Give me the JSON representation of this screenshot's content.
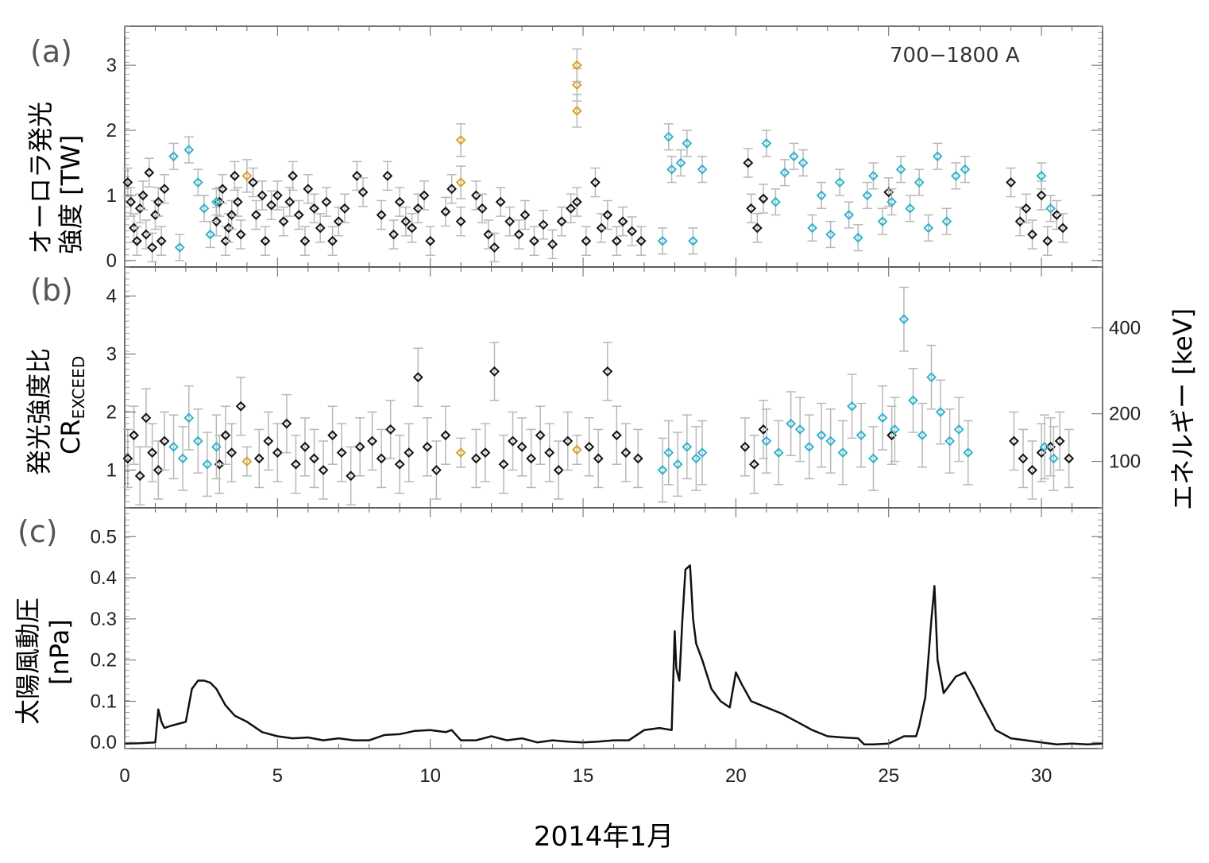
{
  "figure": {
    "xlabel": "2014年1月",
    "xticks": [
      "0",
      "5",
      "10",
      "15",
      "20",
      "25",
      "30"
    ]
  },
  "colors": {
    "black_marker": "#111111",
    "cyan_marker": "#2fb5cf",
    "orange_marker": "#e0a020",
    "errorbar": "#b8b8b8",
    "line": "#111111"
  },
  "chart_data": [
    {
      "panel": "a",
      "panel_label": "(a)",
      "type": "scatter",
      "ylabel_line1": "オーロラ発光",
      "ylabel_line2": "強度 [TW]",
      "annotation": "700−1800 A",
      "yticks": [
        "0",
        "1",
        "2",
        "3"
      ],
      "xlim": [
        0,
        32
      ],
      "ylim": [
        -0.1,
        3.6
      ],
      "series": [
        {
          "color": "black",
          "x": [
            0.1,
            0.2,
            0.3,
            0.4,
            0.5,
            0.6,
            0.7,
            0.8,
            0.9,
            1.0,
            1.1,
            1.2,
            1.3,
            3.0,
            3.1,
            3.2,
            3.3,
            3.4,
            3.5,
            3.6,
            3.7,
            3.8,
            4.2,
            4.3,
            4.5,
            4.6,
            4.8,
            5.0,
            5.2,
            5.4,
            5.5,
            5.7,
            5.9,
            6.0,
            6.2,
            6.4,
            6.6,
            6.8,
            7.0,
            7.2,
            7.6,
            7.8,
            8.4,
            8.6,
            8.8,
            9.0,
            9.2,
            9.4,
            9.6,
            9.8,
            10.0,
            10.5,
            10.7,
            11.0,
            11.5,
            11.7,
            11.9,
            12.1,
            12.3,
            12.6,
            12.9,
            13.1,
            13.4,
            13.7,
            14.0,
            14.3,
            14.6,
            14.8,
            15.1,
            15.4,
            15.6,
            15.8,
            16.1,
            16.3,
            16.6,
            16.9,
            20.4,
            20.5,
            20.7,
            20.9,
            25.0,
            29.0,
            29.3,
            29.5,
            29.7,
            30.0,
            30.2,
            30.5,
            30.7
          ],
          "y": [
            1.2,
            0.9,
            0.5,
            0.3,
            0.8,
            1.0,
            0.4,
            1.35,
            0.2,
            0.7,
            0.9,
            0.3,
            1.1,
            0.6,
            0.9,
            1.1,
            0.3,
            0.5,
            0.7,
            1.3,
            0.9,
            0.4,
            1.2,
            0.7,
            1.0,
            0.3,
            0.85,
            1.0,
            0.6,
            0.9,
            1.3,
            0.7,
            0.3,
            1.1,
            0.8,
            0.5,
            0.9,
            0.3,
            0.6,
            0.8,
            1.3,
            1.05,
            0.7,
            1.3,
            0.4,
            0.9,
            0.6,
            0.5,
            0.8,
            1.0,
            0.3,
            0.75,
            1.1,
            0.6,
            1.0,
            0.8,
            0.4,
            0.2,
            0.9,
            0.6,
            0.4,
            0.7,
            0.3,
            0.55,
            0.25,
            0.6,
            0.8,
            0.9,
            0.3,
            1.2,
            0.5,
            0.7,
            0.3,
            0.6,
            0.45,
            0.3,
            1.5,
            0.8,
            0.5,
            0.95,
            1.05,
            1.2,
            0.6,
            0.8,
            0.4,
            1.0,
            0.3,
            0.7,
            0.5
          ],
          "err": 0.22
        },
        {
          "color": "cyan",
          "x": [
            1.6,
            1.8,
            2.1,
            2.4,
            2.6,
            2.8,
            3.0,
            17.6,
            17.8,
            17.9,
            18.2,
            18.4,
            18.6,
            18.9,
            21.0,
            21.3,
            21.6,
            21.9,
            22.2,
            22.5,
            22.8,
            23.1,
            23.4,
            23.7,
            24.0,
            24.3,
            24.5,
            24.8,
            25.1,
            25.4,
            25.7,
            26.0,
            26.3,
            26.6,
            26.9,
            27.2,
            27.5,
            30.0,
            30.3
          ],
          "y": [
            1.6,
            0.2,
            1.7,
            1.2,
            0.8,
            0.4,
            0.9,
            0.3,
            1.9,
            1.4,
            1.5,
            1.8,
            0.3,
            1.4,
            1.8,
            0.9,
            1.35,
            1.6,
            1.5,
            0.5,
            1.0,
            0.4,
            1.2,
            0.7,
            0.35,
            1.0,
            1.3,
            0.6,
            0.9,
            1.4,
            0.8,
            1.2,
            0.5,
            1.6,
            0.6,
            1.3,
            1.4,
            1.3,
            0.8
          ],
          "err": 0.2
        },
        {
          "color": "orange",
          "x": [
            4.0,
            11.0,
            11.0,
            14.8,
            14.8,
            14.8
          ],
          "y": [
            1.3,
            1.85,
            1.2,
            2.7,
            2.3,
            3.0
          ],
          "err": 0.25
        }
      ]
    },
    {
      "panel": "b",
      "panel_label": "(b)",
      "type": "scatter",
      "ylabel_line1": "発光強度比",
      "ylabel_line2": "CR",
      "ylabel_sub": "EXCEED",
      "right_label": "エネルギー [keV]",
      "yticks": [
        "1",
        "2",
        "3",
        "4"
      ],
      "right_ticks": [
        "100",
        "200",
        "400"
      ],
      "right_tick_positions": [
        1.15,
        1.97,
        3.45
      ],
      "xlim": [
        0,
        32
      ],
      "ylim": [
        0.35,
        4.5
      ],
      "series": [
        {
          "color": "black",
          "x": [
            0.1,
            0.3,
            0.5,
            0.7,
            0.9,
            1.1,
            1.3,
            3.1,
            3.3,
            3.5,
            3.8,
            4.4,
            4.7,
            5.0,
            5.3,
            5.6,
            5.9,
            6.2,
            6.5,
            6.8,
            7.1,
            7.4,
            7.7,
            8.1,
            8.4,
            8.7,
            9.0,
            9.3,
            9.6,
            9.9,
            10.2,
            10.5,
            11.5,
            11.8,
            12.1,
            12.4,
            12.7,
            13.0,
            13.3,
            13.6,
            13.9,
            14.2,
            14.5,
            15.2,
            15.5,
            15.8,
            16.1,
            16.4,
            16.8,
            20.3,
            20.6,
            20.9,
            25.1,
            29.1,
            29.4,
            29.7,
            30.0,
            30.3,
            30.6,
            30.9
          ],
          "y": [
            1.2,
            1.6,
            0.9,
            1.9,
            1.3,
            1.0,
            1.5,
            1.1,
            1.6,
            1.3,
            2.1,
            1.2,
            1.5,
            1.3,
            1.8,
            1.1,
            1.4,
            1.2,
            1.0,
            1.6,
            1.3,
            0.9,
            1.4,
            1.5,
            1.2,
            1.7,
            1.1,
            1.3,
            2.6,
            1.4,
            1.0,
            1.6,
            1.2,
            1.3,
            2.7,
            1.1,
            1.5,
            1.4,
            1.2,
            1.6,
            1.3,
            1.0,
            1.5,
            1.4,
            1.2,
            2.7,
            1.6,
            1.3,
            1.2,
            1.4,
            1.1,
            1.7,
            1.6,
            1.5,
            1.2,
            1.0,
            1.3,
            1.4,
            1.5,
            1.2
          ],
          "err": 0.5
        },
        {
          "color": "cyan",
          "x": [
            1.6,
            1.9,
            2.1,
            2.4,
            2.7,
            3.0,
            17.6,
            17.8,
            18.1,
            18.4,
            18.7,
            18.9,
            21.0,
            21.4,
            21.8,
            22.1,
            22.4,
            22.8,
            23.1,
            23.5,
            23.8,
            24.1,
            24.5,
            24.8,
            25.2,
            25.5,
            25.8,
            26.1,
            26.4,
            26.7,
            27.0,
            27.3,
            27.6,
            30.1,
            30.4
          ],
          "y": [
            1.4,
            1.2,
            1.9,
            1.5,
            1.1,
            1.4,
            1.0,
            1.3,
            1.1,
            1.4,
            1.2,
            1.3,
            1.5,
            1.3,
            1.8,
            1.7,
            1.4,
            1.6,
            1.5,
            1.3,
            2.1,
            1.6,
            1.2,
            1.9,
            1.7,
            3.6,
            2.2,
            1.6,
            2.6,
            2.0,
            1.5,
            1.7,
            1.3,
            1.4,
            1.2
          ],
          "err": 0.55
        },
        {
          "color": "orange",
          "x": [
            4.0,
            11.0,
            14.8
          ],
          "y": [
            1.15,
            1.3,
            1.35
          ],
          "err": 0.25
        }
      ]
    },
    {
      "panel": "c",
      "panel_label": "(c)",
      "type": "line",
      "ylabel_line1": "太陽風動圧",
      "ylabel_line2": "[nPa]",
      "yticks": [
        "0.0",
        "0.1",
        "0.2",
        "0.3",
        "0.4",
        "0.5"
      ],
      "xlim": [
        0,
        32
      ],
      "ylim": [
        -0.015,
        0.57
      ],
      "x": [
        0,
        0.5,
        1.0,
        1.1,
        1.2,
        1.3,
        1.5,
        2.0,
        2.2,
        2.4,
        2.6,
        2.8,
        3.0,
        3.3,
        3.6,
        4.0,
        4.5,
        5.0,
        5.5,
        6.0,
        6.5,
        7.0,
        7.5,
        8.0,
        8.5,
        9.0,
        9.5,
        10.0,
        10.5,
        10.7,
        11.0,
        11.5,
        12.0,
        12.5,
        13.0,
        13.5,
        14.0,
        14.5,
        15.0,
        15.5,
        16.0,
        16.5,
        17.0,
        17.5,
        17.9,
        18.0,
        18.05,
        18.15,
        18.25,
        18.35,
        18.5,
        18.6,
        18.7,
        18.9,
        19.2,
        19.5,
        19.8,
        20.0,
        20.2,
        20.5,
        21.0,
        21.5,
        22.0,
        22.5,
        23.0,
        23.5,
        24.0,
        24.2,
        24.5,
        25.0,
        25.5,
        25.9,
        26.0,
        26.2,
        26.4,
        26.5,
        26.6,
        26.8,
        27.0,
        27.2,
        27.5,
        27.8,
        28.0,
        28.5,
        29.0,
        29.5,
        30.0,
        30.5,
        31.0,
        31.5,
        32.0
      ],
      "y": [
        -0.003,
        -0.002,
        0.0,
        0.08,
        0.05,
        0.035,
        0.04,
        0.05,
        0.13,
        0.15,
        0.15,
        0.145,
        0.13,
        0.09,
        0.065,
        0.05,
        0.025,
        0.015,
        0.01,
        0.012,
        0.005,
        0.01,
        0.005,
        0.005,
        0.018,
        0.02,
        0.028,
        0.03,
        0.025,
        0.03,
        0.005,
        0.005,
        0.015,
        0.005,
        0.01,
        0.0,
        0.005,
        0.002,
        0.0,
        0.002,
        0.005,
        0.005,
        0.03,
        0.035,
        0.03,
        0.27,
        0.18,
        0.15,
        0.3,
        0.42,
        0.43,
        0.3,
        0.24,
        0.2,
        0.13,
        0.1,
        0.085,
        0.17,
        0.14,
        0.1,
        0.085,
        0.07,
        0.05,
        0.03,
        0.015,
        0.012,
        0.01,
        -0.005,
        -0.005,
        -0.003,
        0.015,
        0.015,
        0.04,
        0.11,
        0.3,
        0.38,
        0.2,
        0.12,
        0.14,
        0.16,
        0.17,
        0.13,
        0.1,
        0.03,
        0.01,
        0.005,
        0.0,
        -0.005,
        -0.003,
        -0.005,
        -0.003
      ]
    }
  ]
}
